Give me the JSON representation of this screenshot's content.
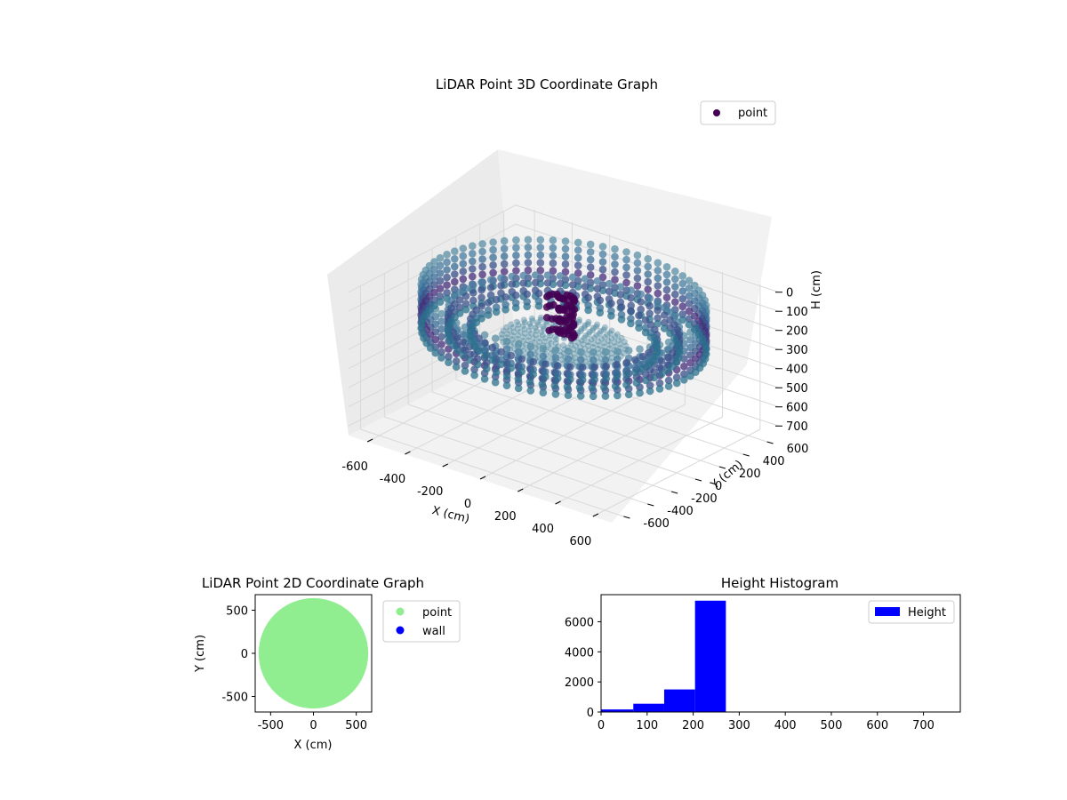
{
  "colors": {
    "pane": "#f2f2f2",
    "pane_dark": "#ebebeb",
    "grid": "#d9d9d9",
    "point_2d": "#90ee90",
    "wall_2d": "#0000ff",
    "histogram": "#0000ff",
    "viridis_dark": "#440154",
    "viridis_mid": "#3b528b",
    "viridis_teal": "#2c728e"
  },
  "chart_data": [
    {
      "type": "scatter3d",
      "title": "LiDAR Point 3D Coordinate Graph",
      "xlabel": "X (cm)",
      "ylabel": "Y (cm)",
      "zlabel": "H (cm)",
      "legend": {
        "labels": [
          "point"
        ],
        "placement": "top-right"
      },
      "xticks": [
        -600,
        -400,
        -200,
        0,
        200,
        400,
        600
      ],
      "yticks": [
        -600,
        -400,
        -200,
        0,
        200,
        400,
        600
      ],
      "zticks": [
        0,
        100,
        200,
        300,
        400,
        500,
        600,
        700
      ],
      "xlim": [
        -700,
        700
      ],
      "ylim": [
        -700,
        700
      ],
      "zlim": [
        0,
        750
      ],
      "z_inverted": true,
      "grid": true,
      "colormap": "viridis"
    },
    {
      "type": "scatter",
      "title": "LiDAR Point 2D Coordinate Graph",
      "xlabel": "X (cm)",
      "ylabel": "Y (cm)",
      "xticks": [
        -500,
        0,
        500
      ],
      "yticks": [
        500,
        0,
        -500
      ],
      "xlim": [
        -680,
        680
      ],
      "ylim": [
        -680,
        680
      ],
      "legend": {
        "labels": [
          "point",
          "wall"
        ],
        "placement": "outside-right"
      },
      "series": [
        {
          "name": "point",
          "color": "#90ee90",
          "shape": "disk",
          "radius": 640
        },
        {
          "name": "wall",
          "color": "#0000ff",
          "values": []
        }
      ]
    },
    {
      "type": "bar",
      "title": "Height Histogram",
      "xlabel": "",
      "ylabel": "",
      "legend": {
        "labels": [
          "Height"
        ],
        "placement": "top-right"
      },
      "xlim": [
        0,
        780
      ],
      "ylim": [
        0,
        7800
      ],
      "xticks": [
        0,
        100,
        200,
        300,
        400,
        500,
        600,
        700
      ],
      "yticks": [
        0,
        2000,
        4000,
        6000
      ],
      "bins": [
        {
          "x0": 0,
          "x1": 70,
          "value": 170
        },
        {
          "x0": 70,
          "x1": 137,
          "value": 550
        },
        {
          "x0": 137,
          "x1": 204,
          "value": 1500
        },
        {
          "x0": 204,
          "x1": 271,
          "value": 7400
        },
        {
          "x0": 271,
          "x1": 338,
          "value": 0
        },
        {
          "x0": 338,
          "x1": 405,
          "value": 0
        },
        {
          "x0": 405,
          "x1": 472,
          "value": 0
        },
        {
          "x0": 472,
          "x1": 539,
          "value": 0
        },
        {
          "x0": 539,
          "x1": 606,
          "value": 0
        },
        {
          "x0": 606,
          "x1": 673,
          "value": 0
        },
        {
          "x0": 673,
          "x1": 740,
          "value": 0
        }
      ]
    }
  ]
}
